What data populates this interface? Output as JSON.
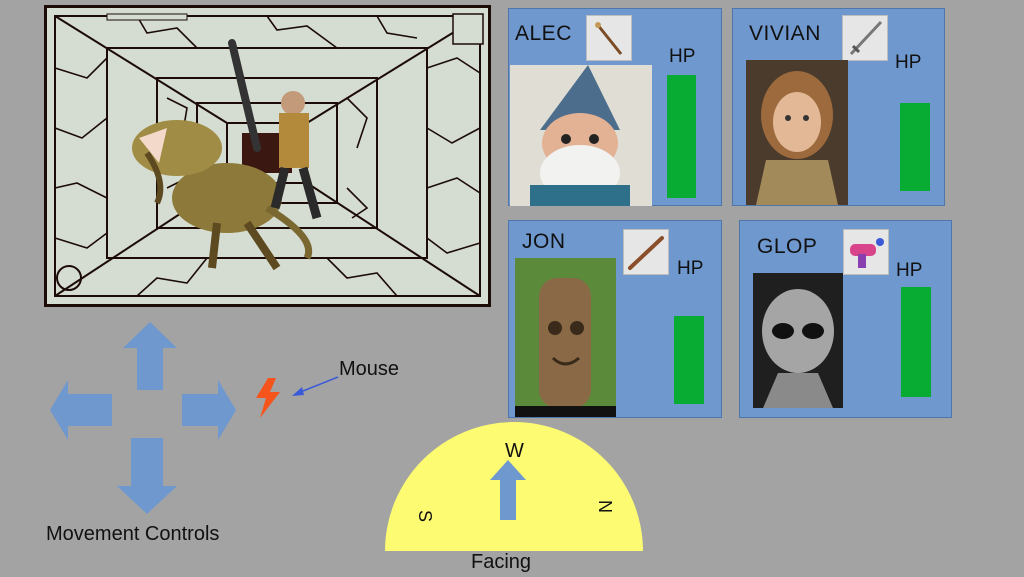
{
  "party": [
    {
      "name": "ALEC",
      "hp_label": "HP",
      "hp_fraction": 1.0,
      "weapon": "wand-icon",
      "portrait": "gnome-portrait"
    },
    {
      "name": "VIVIAN",
      "hp_label": "HP",
      "hp_fraction": 1.0,
      "weapon": "sword-icon",
      "portrait": "warrior-woman-portrait"
    },
    {
      "name": "JON",
      "hp_label": "HP",
      "hp_fraction": 1.0,
      "weapon": "club-icon",
      "portrait": "tree-ent-portrait"
    },
    {
      "name": "GLOP",
      "hp_label": "HP",
      "hp_fraction": 1.0,
      "weapon": "ray-gun-icon",
      "portrait": "alien-portrait"
    }
  ],
  "controls": {
    "movement_label": "Movement Controls",
    "mouse_label": "Mouse"
  },
  "compass": {
    "facing_label": "Facing",
    "up": "W",
    "left": "S",
    "right": "N"
  },
  "colors": {
    "card_bg": "#6f98cf",
    "hp_green": "#09ac33",
    "arrow_blue": "#6f98cf",
    "compass_yellow": "#fcfb72",
    "cursor_orange": "#f5541c"
  }
}
